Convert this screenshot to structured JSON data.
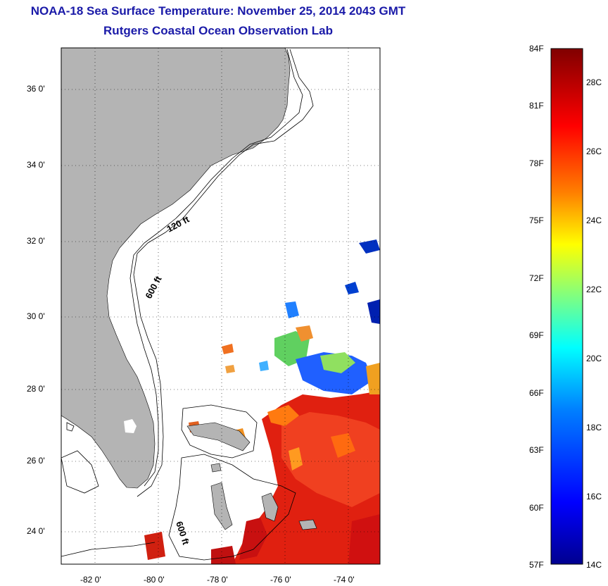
{
  "header": {
    "title": "NOAA-18 Sea Surface Temperature:  November 25, 2014 2043 GMT",
    "subtitle": "Rutgers Coastal Ocean Observation Lab"
  },
  "map": {
    "lat_labels": [
      "36 0'",
      "34 0'",
      "32 0'",
      "30 0'",
      "28 0'",
      "26 0'",
      "24 0'"
    ],
    "lon_labels": [
      "-82 0'",
      "-80 0'",
      "-78 0'",
      "-76 0'",
      "-74 0'"
    ],
    "contours": [
      "120 ft",
      "600 ft",
      "600 ft"
    ],
    "land_color": "#b4b4b4"
  },
  "colorbar": {
    "f_labels": [
      "84F",
      "81F",
      "78F",
      "75F",
      "72F",
      "69F",
      "66F",
      "63F",
      "60F",
      "57F"
    ],
    "c_labels": [
      "28C",
      "26C",
      "24C",
      "22C",
      "20C",
      "18C",
      "16C",
      "14C"
    ],
    "range_f": [
      57,
      84
    ],
    "colormap": [
      "#00008f",
      "#0000ff",
      "#0080ff",
      "#00ffff",
      "#80ff80",
      "#ffff00",
      "#ff8000",
      "#ff0000",
      "#800000"
    ]
  }
}
